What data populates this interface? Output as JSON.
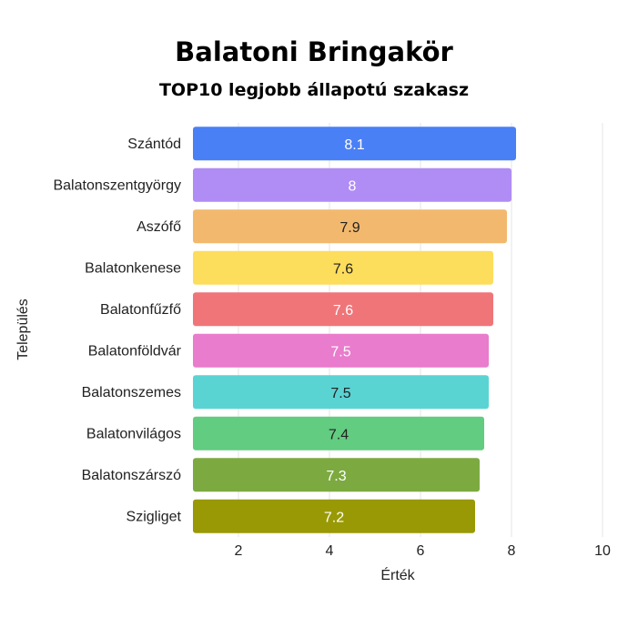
{
  "chart_data": {
    "type": "bar",
    "orientation": "horizontal",
    "title": "Balatoni Bringakör",
    "subtitle": "TOP10 legjobb állapotú szakasz",
    "xlabel": "Érték",
    "ylabel": "Település",
    "xlim": [
      1,
      10
    ],
    "xticks": [
      2,
      4,
      6,
      8,
      10
    ],
    "grid": "vertical",
    "legend": "none",
    "categories": [
      "Szántód",
      "Balatonszentgyörgy",
      "Aszófő",
      "Balatonkenese",
      "Balatonfűzfő",
      "Balatonföldvár",
      "Balatonszemes",
      "Balatonvilágos",
      "Balatonszárszó",
      "Szigliget"
    ],
    "values": [
      8.1,
      8,
      7.9,
      7.6,
      7.6,
      7.5,
      7.5,
      7.4,
      7.3,
      7.2
    ],
    "data_labels": [
      "8.1",
      "8",
      "7.9",
      "7.6",
      "7.6",
      "7.5",
      "7.5",
      "7.4",
      "7.3",
      "7.2"
    ],
    "colors": [
      "#4a80f5",
      "#b08cf5",
      "#f2b86e",
      "#fddd5c",
      "#f07579",
      "#e97ccc",
      "#5ad3d3",
      "#62cc80",
      "#7caa40",
      "#999905"
    ],
    "label_colors": [
      "#ffffff",
      "#ffffff",
      "#222222",
      "#222222",
      "#ffffff",
      "#ffffff",
      "#222222",
      "#222222",
      "#ffffff",
      "#ffffff"
    ]
  }
}
